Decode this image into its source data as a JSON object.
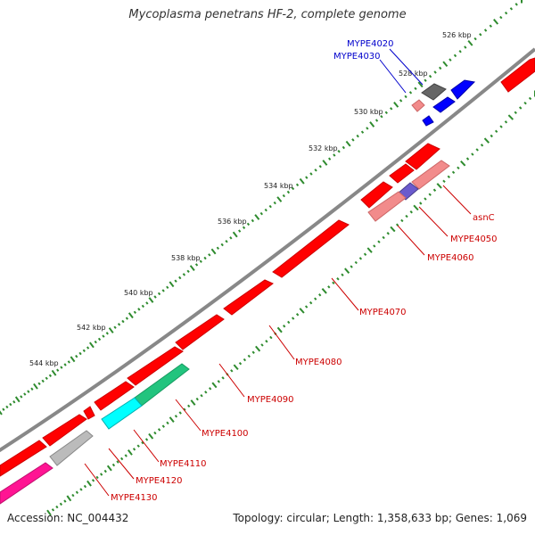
{
  "title": "Mycoplasma penetrans HF-2, complete genome",
  "footer": {
    "accession": "Accession: NC_004432",
    "summary": "Topology: circular; Length: 1,358,633 bp; Genes: 1,069"
  },
  "colors": {
    "backbone": "#888888",
    "tick": "#2e8b2e",
    "red_gene": "#ff0000",
    "pink_gene": "#f28b8b",
    "blue_gene": "#0000ff",
    "dark_gray_gene": "#666666",
    "light_gray_gene": "#bbbbbb",
    "cyan_gene": "#00ffff",
    "teal_gene": "#22c47e",
    "magenta_gene": "#ff1493",
    "purple_gene": "#6a5acd",
    "label_blue": "#0000cc",
    "label_red": "#cc0000"
  },
  "scale_labels": [
    "526 kbp",
    "528 kbp",
    "530 kbp",
    "532 kbp",
    "534 kbp",
    "536 kbp",
    "538 kbp",
    "540 kbp",
    "542 kbp",
    "544 kbp"
  ],
  "gene_labels": {
    "mype4020": "MYPE4020",
    "mype4030": "MYPE4030",
    "asnc": "asnC",
    "mype4050": "MYPE4050",
    "mype4060": "MYPE4060",
    "mype4070": "MYPE4070",
    "mype4080": "MYPE4080",
    "mype4090": "MYPE4090",
    "mype4100": "MYPE4100",
    "mype4110": "MYPE4110",
    "mype4120": "MYPE4120",
    "mype4130": "MYPE4130"
  }
}
